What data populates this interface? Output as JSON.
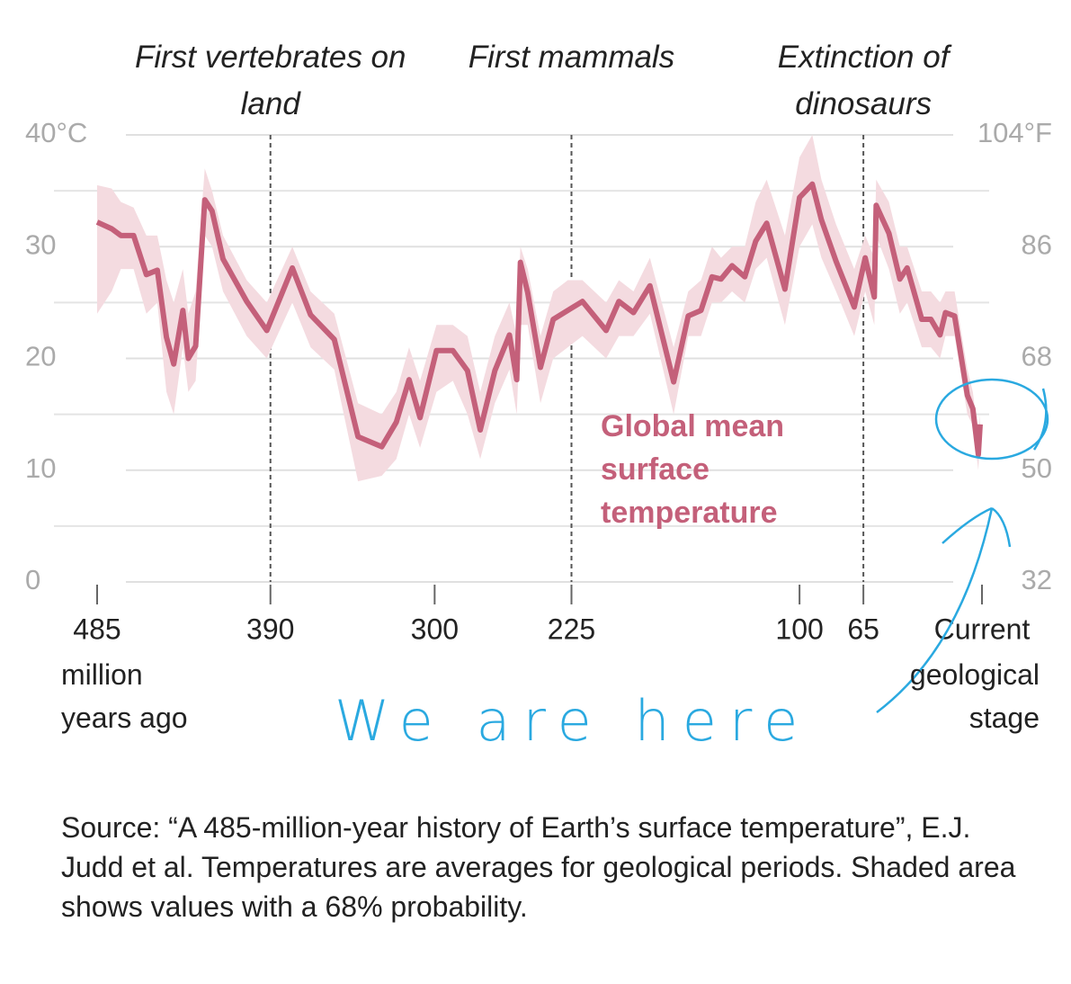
{
  "chart_data": {
    "type": "line",
    "x": [
      485,
      477,
      472,
      465,
      458,
      452,
      447,
      443,
      438,
      435,
      431,
      426,
      422,
      416,
      403,
      392,
      378,
      368,
      355,
      342,
      329,
      321,
      314,
      308,
      299,
      290,
      282,
      275,
      267,
      259,
      255,
      253,
      249,
      242,
      235,
      227,
      219,
      206,
      199,
      191,
      182,
      169,
      161,
      154,
      148,
      143,
      137,
      130,
      124,
      118,
      108,
      100,
      93,
      88,
      80,
      70,
      64,
      59,
      58,
      51,
      45,
      41,
      33,
      28,
      23,
      20,
      15,
      8,
      5,
      2,
      1
    ],
    "series": [
      {
        "name": "Global mean surface temperature",
        "color": "#c4607a",
        "band_color": "#f4dbe0",
        "values": [
          32.2,
          31.6,
          31.0,
          31.0,
          27.5,
          27.9,
          21.9,
          19.5,
          24.3,
          20.0,
          21.1,
          34.2,
          33.2,
          28.9,
          25.1,
          22.5,
          28.1,
          23.9,
          21.7,
          13.0,
          12.1,
          14.3,
          18.1,
          14.7,
          20.7,
          20.7,
          18.9,
          13.6,
          18.9,
          22.1,
          18.1,
          28.6,
          25.9,
          19.2,
          23.5,
          24.3,
          25.1,
          22.5,
          25.1,
          24.1,
          26.5,
          17.9,
          23.8,
          24.3,
          27.3,
          27.1,
          28.3,
          27.3,
          30.5,
          32.1,
          26.2,
          34.4,
          35.6,
          32.4,
          28.7,
          24.6,
          29.0,
          25.5,
          33.7,
          31.2,
          27.1,
          28.1,
          23.5,
          23.5,
          22.1,
          24.1,
          23.8,
          16.7,
          15.5,
          11.4,
          14.1
        ],
        "upper": [
          35.5,
          35.2,
          34,
          33.5,
          31,
          31,
          27,
          25,
          28,
          24,
          26,
          37,
          35,
          31,
          27,
          25,
          30,
          26,
          24,
          16,
          15,
          17,
          21,
          18,
          23,
          23,
          22,
          17,
          22,
          25,
          22,
          30,
          28,
          22,
          26,
          27,
          27,
          25,
          27,
          26,
          29,
          21,
          26,
          27,
          30,
          29,
          30,
          30,
          34,
          36,
          31,
          38,
          40,
          36,
          32,
          28,
          31,
          29,
          36,
          34,
          30,
          30,
          26,
          26,
          25,
          26,
          26,
          19,
          17,
          13,
          15
        ],
        "lower": [
          24,
          26,
          28,
          28,
          24,
          25,
          17,
          15,
          21,
          17,
          18,
          31,
          30,
          26,
          22,
          20,
          25,
          21,
          19,
          9,
          9.5,
          11,
          15,
          12,
          17,
          18,
          15,
          11,
          16,
          19,
          15,
          23,
          23,
          16,
          20,
          21,
          22,
          20,
          22,
          22,
          24,
          15,
          22,
          22,
          25,
          25,
          26,
          25,
          28,
          29,
          23,
          30,
          32,
          29,
          26,
          22,
          26,
          23,
          31,
          28,
          24,
          25,
          21,
          21,
          20,
          22,
          22,
          15,
          14,
          10,
          13
        ]
      }
    ],
    "xlim": [
      485,
      0
    ],
    "xticks": [
      485,
      390,
      300,
      225,
      100,
      65,
      {
        "value": 0,
        "label": "Current"
      }
    ],
    "x_label_left": "million years ago",
    "x_label_right": "geological stage",
    "ylim": [
      0,
      40
    ],
    "yticks": [
      0,
      10,
      20,
      30,
      {
        "value": 40,
        "label": "40°C"
      }
    ],
    "minor_yticks": [
      5,
      15,
      25,
      35
    ],
    "y2lim": [
      32,
      104
    ],
    "y2ticks": [
      32,
      50,
      68,
      86,
      {
        "value": 104,
        "label": "104°F"
      }
    ],
    "grid": true,
    "events": [
      {
        "x": 390,
        "label": "First vertebrates on land"
      },
      {
        "x": 225,
        "label": "First mammals"
      },
      {
        "x": 65,
        "label": "Extinction of dinosaurs"
      }
    ],
    "handwritten_note": "We are here",
    "source": "Source: “A 485-million-year history of Earth’s surface temperature”, E.J. Judd et al. Temperatures are averages for geological periods. Shaded area shows values with a 68% probability."
  }
}
